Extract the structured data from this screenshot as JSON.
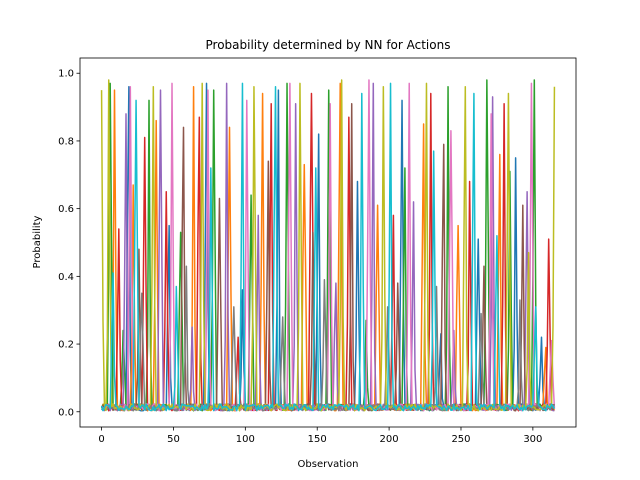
{
  "chart_data": {
    "type": "line",
    "title": "Probability determined by NN for Actions",
    "xlabel": "Observation",
    "ylabel": "Probability",
    "xlim": [
      -15,
      330
    ],
    "ylim": [
      -0.045,
      1.045
    ],
    "xticks": [
      0,
      50,
      100,
      150,
      200,
      250,
      300
    ],
    "yticks": [
      0.0,
      0.2,
      0.4,
      0.6,
      0.8,
      1.0
    ],
    "ytick_labels": [
      "0.0",
      "0.2",
      "0.4",
      "0.6",
      "0.8",
      "1.0"
    ],
    "grid": false,
    "legend": "none",
    "x_range": [
      0,
      315
    ],
    "num_series": 10,
    "series_colors": [
      "#1f77b4",
      "#ff7f0e",
      "#2ca02c",
      "#d62728",
      "#9467bd",
      "#8c564b",
      "#e377c2",
      "#7f7f7f",
      "#bcbd22",
      "#17becf"
    ],
    "series": [
      {
        "peaks": [
          [
            4,
            0.02
          ],
          [
            19,
            0.96
          ],
          [
            47,
            0.55
          ],
          [
            73,
            0.97
          ],
          [
            98,
            0.36
          ],
          [
            123,
            0.95
          ],
          [
            151,
            0.82
          ],
          [
            178,
            0.68
          ],
          [
            209,
            0.92
          ],
          [
            236,
            0.23
          ],
          [
            262,
            0.51
          ],
          [
            288,
            0.75
          ],
          [
            306,
            0.22
          ]
        ]
      },
      {
        "peaks": [
          [
            9,
            0.95
          ],
          [
            22,
            0.67
          ],
          [
            38,
            0.86
          ],
          [
            64,
            0.96
          ],
          [
            89,
            0.84
          ],
          [
            112,
            0.94
          ],
          [
            141,
            0.73
          ],
          [
            166,
            0.97
          ],
          [
            192,
            0.61
          ],
          [
            224,
            0.85
          ],
          [
            248,
            0.55
          ],
          [
            277,
            0.76
          ],
          [
            309,
            0.19
          ]
        ]
      },
      {
        "peaks": [
          [
            6,
            0.97
          ],
          [
            15,
            0.24
          ],
          [
            33,
            0.92
          ],
          [
            55,
            0.53
          ],
          [
            78,
            0.95
          ],
          [
            104,
            0.64
          ],
          [
            129,
            0.97
          ],
          [
            158,
            0.95
          ],
          [
            184,
            0.27
          ],
          [
            211,
            0.72
          ],
          [
            241,
            0.96
          ],
          [
            268,
            0.98
          ],
          [
            284,
            0.71
          ],
          [
            301,
            0.98
          ],
          [
            316,
            0.25
          ]
        ]
      },
      {
        "peaks": [
          [
            3,
            0.02
          ],
          [
            12,
            0.54
          ],
          [
            30,
            0.81
          ],
          [
            45,
            0.65
          ],
          [
            68,
            0.87
          ],
          [
            95,
            0.22
          ],
          [
            118,
            0.91
          ],
          [
            146,
            0.94
          ],
          [
            172,
            0.87
          ],
          [
            203,
            0.58
          ],
          [
            229,
            0.94
          ],
          [
            256,
            0.68
          ],
          [
            280,
            0.91
          ],
          [
            311,
            0.51
          ]
        ]
      },
      {
        "peaks": [
          [
            17,
            0.88
          ],
          [
            41,
            0.95
          ],
          [
            63,
            0.25
          ],
          [
            87,
            0.97
          ],
          [
            109,
            0.58
          ],
          [
            135,
            0.91
          ],
          [
            163,
            0.38
          ],
          [
            189,
            0.97
          ],
          [
            217,
            0.62
          ],
          [
            245,
            0.24
          ],
          [
            272,
            0.93
          ],
          [
            296,
            0.65
          ]
        ]
      },
      {
        "peaks": [
          [
            26,
            0.48
          ],
          [
            57,
            0.84
          ],
          [
            82,
            0.63
          ],
          [
            116,
            0.74
          ],
          [
            147,
            0.53
          ],
          [
            174,
            0.91
          ],
          [
            206,
            0.38
          ],
          [
            238,
            0.79
          ],
          [
            266,
            0.43
          ],
          [
            293,
            0.61
          ]
        ]
      },
      {
        "peaks": [
          [
            20,
            0.96
          ],
          [
            49,
            0.97
          ],
          [
            74,
            0.95
          ],
          [
            101,
            0.92
          ],
          [
            131,
            0.97
          ],
          [
            159,
            0.91
          ],
          [
            186,
            0.98
          ],
          [
            214,
            0.97
          ],
          [
            243,
            0.83
          ],
          [
            271,
            0.88
          ],
          [
            299,
            0.97
          ],
          [
            313,
            0.21
          ]
        ]
      },
      {
        "peaks": [
          [
            28,
            0.35
          ],
          [
            59,
            0.43
          ],
          [
            92,
            0.31
          ],
          [
            126,
            0.28
          ],
          [
            155,
            0.39
          ],
          [
            199,
            0.31
          ],
          [
            233,
            0.37
          ],
          [
            264,
            0.29
          ],
          [
            291,
            0.33
          ]
        ]
      },
      {
        "peaks": [
          [
            0,
            0.95
          ],
          [
            5,
            0.98
          ],
          [
            36,
            0.96
          ],
          [
            70,
            0.97
          ],
          [
            106,
            0.96
          ],
          [
            138,
            0.97
          ],
          [
            167,
            0.98
          ],
          [
            196,
            0.96
          ],
          [
            226,
            0.97
          ],
          [
            253,
            0.96
          ],
          [
            283,
            0.94
          ],
          [
            297,
            0.47
          ],
          [
            315,
            0.96
          ]
        ]
      },
      {
        "peaks": [
          [
            8,
            0.41
          ],
          [
            24,
            0.92
          ],
          [
            52,
            0.37
          ],
          [
            76,
            0.72
          ],
          [
            98,
            0.97
          ],
          [
            121,
            0.96
          ],
          [
            149,
            0.72
          ],
          [
            181,
            0.94
          ],
          [
            201,
            0.97
          ],
          [
            231,
            0.77
          ],
          [
            259,
            0.94
          ],
          [
            275,
            0.52
          ],
          [
            302,
            0.31
          ]
        ]
      }
    ]
  }
}
